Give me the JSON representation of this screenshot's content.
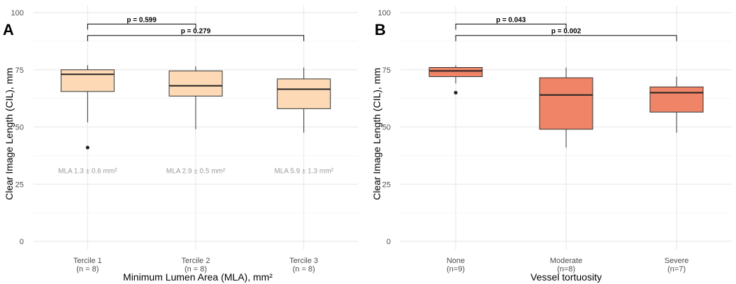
{
  "chart_data": [
    {
      "type": "box",
      "panel_label": "A",
      "xlabel": "Minimum Lumen Area (MLA), mm²",
      "ylabel": "Clear Image Length (CIL), mm",
      "ylim": [
        0,
        100
      ],
      "yticks": [
        0,
        25,
        50,
        75,
        100
      ],
      "box_color": "#fdd9b5",
      "groups": [
        {
          "label": "Tercile 1",
          "sublabel": "(n = 8)",
          "min": 52,
          "q1": 65.5,
          "median": 73,
          "q3": 75,
          "max": 77,
          "outliers": [
            41
          ],
          "annotation": "MLA 1.3 ± 0.6 mm²"
        },
        {
          "label": "Tercile 2",
          "sublabel": "(n = 8)",
          "min": 49,
          "q1": 63.5,
          "median": 68,
          "q3": 74.5,
          "max": 76.5,
          "outliers": [],
          "annotation": "MLA 2.9 ± 0.5 mm²"
        },
        {
          "label": "Tercile 3",
          "sublabel": "(n = 8)",
          "min": 47.5,
          "q1": 58,
          "median": 66.5,
          "q3": 71,
          "max": 76,
          "outliers": [],
          "annotation": "MLA 5.9 ± 1.3 mm²"
        }
      ],
      "comparisons": [
        {
          "from": 0,
          "to": 1,
          "y": 95,
          "label": "p = 0.599"
        },
        {
          "from": 0,
          "to": 2,
          "y": 90,
          "label": "p = 0.279"
        }
      ],
      "annotation_y": 31
    },
    {
      "type": "box",
      "panel_label": "B",
      "xlabel": "Vessel tortuosity",
      "ylabel": "Clear Image Length (CIL), mm",
      "ylim": [
        0,
        100
      ],
      "yticks": [
        0,
        25,
        50,
        75,
        100
      ],
      "box_color": "#ef8467",
      "groups": [
        {
          "label": "None",
          "sublabel": "(n=9)",
          "min": 69,
          "q1": 72,
          "median": 74.5,
          "q3": 76,
          "max": 77,
          "outliers": [
            65
          ],
          "annotation": ""
        },
        {
          "label": "Moderate",
          "sublabel": "(n=8)",
          "min": 41,
          "q1": 49,
          "median": 64,
          "q3": 71.5,
          "max": 76,
          "outliers": [],
          "annotation": ""
        },
        {
          "label": "Severe",
          "sublabel": "(n=7)",
          "min": 47.5,
          "q1": 56.5,
          "median": 65,
          "q3": 67.5,
          "max": 72,
          "outliers": [],
          "annotation": ""
        }
      ],
      "comparisons": [
        {
          "from": 0,
          "to": 1,
          "y": 95,
          "label": "p = 0.043"
        },
        {
          "from": 0,
          "to": 2,
          "y": 90,
          "label": "p = 0.002"
        }
      ],
      "annotation_y": 31
    }
  ]
}
